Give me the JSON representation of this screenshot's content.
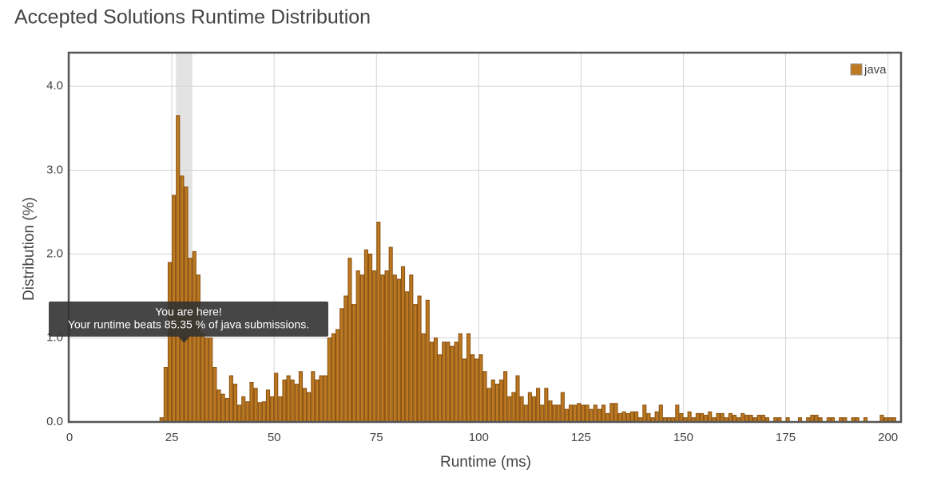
{
  "chart_data": {
    "type": "histogram",
    "title": "Accepted Solutions Runtime Distribution",
    "x_label": "Runtime (ms)",
    "y_label": "Distribution (%)",
    "series_name": "java",
    "color": "#bd7a22",
    "edge_color": "#8e5512",
    "xlim": [
      0,
      203
    ],
    "ylim": [
      0,
      4.4
    ],
    "xticks": [
      0,
      25,
      50,
      75,
      100,
      125,
      150,
      175,
      200
    ],
    "yticks": [
      {
        "value": 0,
        "label": "0.0"
      },
      {
        "value": 1,
        "label": "1.0"
      },
      {
        "value": 2,
        "label": "2.0"
      },
      {
        "value": 3,
        "label": "3.0"
      },
      {
        "value": 4,
        "label": "4.0"
      }
    ],
    "grid": true,
    "legend": "upper right",
    "highlight": [
      26,
      30
    ],
    "tooltip": {
      "title": "You are here!",
      "text": "Your runtime beats 85.35 % of java submissions."
    },
    "bins": [
      22,
      23,
      24,
      25,
      26,
      27,
      28,
      29,
      30,
      31,
      32,
      33,
      34,
      35,
      36,
      37,
      38,
      39,
      40,
      41,
      42,
      43,
      44,
      45,
      46,
      47,
      48,
      49,
      50,
      51,
      52,
      53,
      54,
      55,
      56,
      57,
      58,
      59,
      60,
      61,
      62,
      63,
      64,
      65,
      66,
      67,
      68,
      69,
      70,
      71,
      72,
      73,
      74,
      75,
      76,
      77,
      78,
      79,
      80,
      81,
      82,
      83,
      84,
      85,
      86,
      87,
      88,
      89,
      90,
      91,
      92,
      93,
      94,
      95,
      96,
      97,
      98,
      99,
      100,
      101,
      102,
      103,
      104,
      105,
      106,
      107,
      108,
      109,
      110,
      111,
      112,
      113,
      114,
      115,
      116,
      117,
      118,
      119,
      120,
      121,
      122,
      123,
      124,
      125,
      126,
      127,
      128,
      129,
      130,
      131,
      132,
      133,
      134,
      135,
      136,
      137,
      138,
      139,
      140,
      141,
      142,
      143,
      144,
      145,
      146,
      147,
      148,
      149,
      150,
      151,
      152,
      153,
      154,
      155,
      156,
      157,
      158,
      159,
      160,
      161,
      162,
      163,
      164,
      165,
      166,
      167,
      168,
      169,
      170,
      171,
      172,
      173,
      174,
      175,
      176,
      177,
      178,
      179,
      180,
      181,
      182,
      183,
      184,
      185,
      186,
      187,
      188,
      189,
      190,
      191,
      192,
      193,
      194,
      195,
      196,
      197,
      198,
      199,
      200,
      201,
      202
    ],
    "counts": [
      0.05,
      0.65,
      1.9,
      2.7,
      3.65,
      2.93,
      2.8,
      1.95,
      2.03,
      1.75,
      1.05,
      1.0,
      1.0,
      0.65,
      0.38,
      0.33,
      0.28,
      0.55,
      0.45,
      0.2,
      0.3,
      0.24,
      0.47,
      0.4,
      0.23,
      0.24,
      0.38,
      0.3,
      0.58,
      0.3,
      0.5,
      0.55,
      0.5,
      0.45,
      0.6,
      0.4,
      0.35,
      0.6,
      0.5,
      0.55,
      0.55,
      1.0,
      1.05,
      1.1,
      1.35,
      1.5,
      1.95,
      1.4,
      1.8,
      1.75,
      2.05,
      2.0,
      1.8,
      2.38,
      1.75,
      1.8,
      2.08,
      1.75,
      1.7,
      1.85,
      1.55,
      1.75,
      1.4,
      1.5,
      1.05,
      1.45,
      0.95,
      1.0,
      0.8,
      0.95,
      0.95,
      0.9,
      0.95,
      1.05,
      0.75,
      1.05,
      0.8,
      0.75,
      0.8,
      0.6,
      0.4,
      0.5,
      0.45,
      0.5,
      0.6,
      0.3,
      0.35,
      0.55,
      0.3,
      0.2,
      0.35,
      0.3,
      0.4,
      0.2,
      0.4,
      0.25,
      0.2,
      0.2,
      0.35,
      0.15,
      0.2,
      0.2,
      0.22,
      0.2,
      0.2,
      0.15,
      0.2,
      0.15,
      0.2,
      0.1,
      0.22,
      0.22,
      0.1,
      0.12,
      0.1,
      0.12,
      0.12,
      0.05,
      0.2,
      0.1,
      0.05,
      0.12,
      0.2,
      0.05,
      0.05,
      0.05,
      0.2,
      0.1,
      0.05,
      0.12,
      0.05,
      0.1,
      0.1,
      0.08,
      0.12,
      0.05,
      0.1,
      0.1,
      0.05,
      0.1,
      0.08,
      0.05,
      0.1,
      0.08,
      0.08,
      0.05,
      0.08,
      0.08,
      0.05,
      0,
      0.05,
      0.05,
      0,
      0.05,
      0,
      0,
      0.05,
      0,
      0.05,
      0.08,
      0.08,
      0.05,
      0,
      0.05,
      0.05,
      0,
      0.05,
      0.05,
      0,
      0.05,
      0.05,
      0,
      0.05,
      0,
      0,
      0,
      0.08,
      0.05,
      0.05,
      0.05
    ]
  }
}
